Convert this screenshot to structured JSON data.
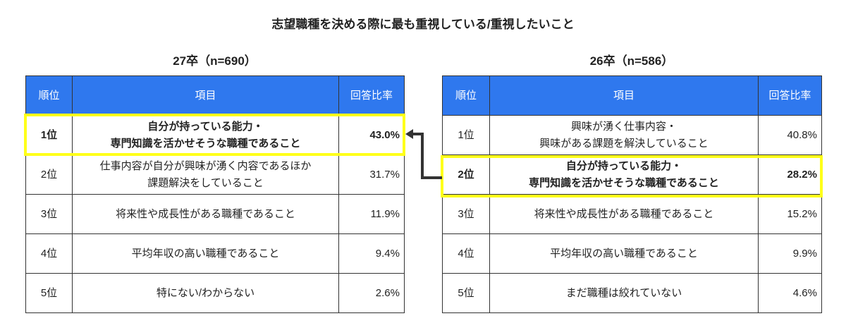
{
  "title": "志望職種を決める際に最も重視している/重視したいこと",
  "headers": {
    "rank": "順位",
    "item": "項目",
    "rate": "回答比率"
  },
  "tables": [
    {
      "caption": "27卒（n=690）",
      "rows": [
        {
          "rank": "1位",
          "item1": "自分が持っている能力・",
          "item2": "専門知識を活かせそうな職種であること",
          "rate": "43.0%"
        },
        {
          "rank": "2位",
          "item1": "仕事内容が自分が興味が湧く内容であるほか",
          "item2": "課題解決をしていること",
          "rate": "31.7%"
        },
        {
          "rank": "3位",
          "item1": "将来性や成長性がある職種であること",
          "item2": "",
          "rate": "11.9%"
        },
        {
          "rank": "4位",
          "item1": "平均年収の高い職種であること",
          "item2": "",
          "rate": "9.4%"
        },
        {
          "rank": "5位",
          "item1": "特にない/わからない",
          "item2": "",
          "rate": "2.6%"
        }
      ]
    },
    {
      "caption": "26卒（n=586）",
      "rows": [
        {
          "rank": "1位",
          "item1": "興味が湧く仕事内容・",
          "item2": "興味がある課題を解決していること",
          "rate": "40.8%"
        },
        {
          "rank": "2位",
          "item1": "自分が持っている能力・",
          "item2": "専門知識を活かせそうな職種であること",
          "rate": "28.2%"
        },
        {
          "rank": "3位",
          "item1": "将来性や成長性がある職種であること",
          "item2": "",
          "rate": "15.2%"
        },
        {
          "rank": "4位",
          "item1": "平均年収の高い職種であること",
          "item2": "",
          "rate": "9.9%"
        },
        {
          "rank": "5位",
          "item1": "まだ職種は絞れていない",
          "item2": "",
          "rate": "4.6%"
        }
      ]
    }
  ],
  "colors": {
    "header": "#2f78ee",
    "highlight": "#ffff1a",
    "arrow": "#333333"
  }
}
